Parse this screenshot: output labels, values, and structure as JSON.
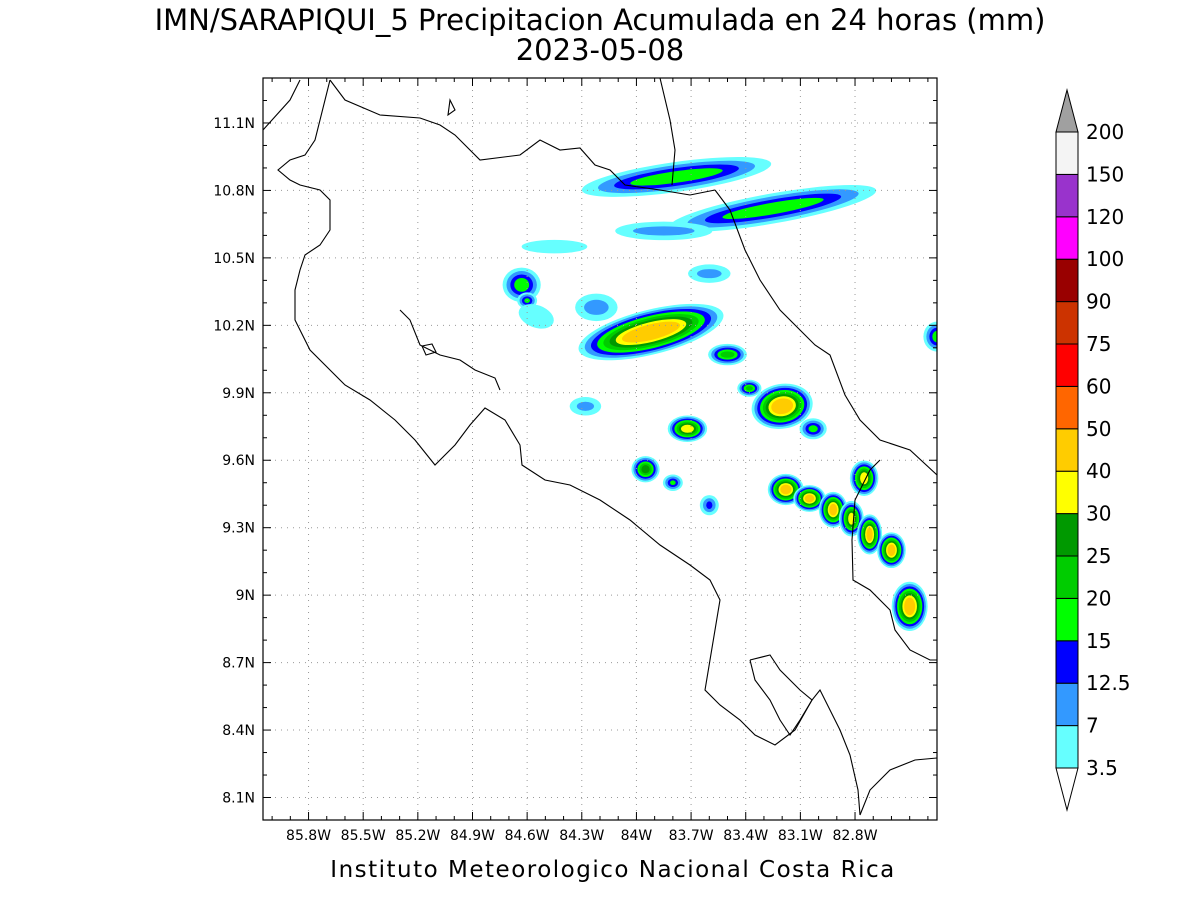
{
  "title": {
    "line1": "IMN/SARAPIQUI_5 Precipitacion Acumulada en 24 horas (mm)",
    "line2": "2023-05-08"
  },
  "footer": "Instituto Meteorologico Nacional Costa Rica",
  "axes": {
    "lon_range": [
      -86.05,
      -82.35
    ],
    "lat_range": [
      8.0,
      11.3
    ],
    "x_ticks": [
      {
        "value": -85.8,
        "label": "85.8W"
      },
      {
        "value": -85.5,
        "label": "85.5W"
      },
      {
        "value": -85.2,
        "label": "85.2W"
      },
      {
        "value": -84.9,
        "label": "84.9W"
      },
      {
        "value": -84.6,
        "label": "84.6W"
      },
      {
        "value": -84.3,
        "label": "84.3W"
      },
      {
        "value": -84.0,
        "label": "84W"
      },
      {
        "value": -83.7,
        "label": "83.7W"
      },
      {
        "value": -83.4,
        "label": "83.4W"
      },
      {
        "value": -83.1,
        "label": "83.1W"
      },
      {
        "value": -82.8,
        "label": "82.8W"
      }
    ],
    "y_ticks": [
      {
        "value": 8.1,
        "label": "8.1N"
      },
      {
        "value": 8.4,
        "label": "8.4N"
      },
      {
        "value": 8.7,
        "label": "8.7N"
      },
      {
        "value": 9.0,
        "label": "9N"
      },
      {
        "value": 9.3,
        "label": "9.3N"
      },
      {
        "value": 9.6,
        "label": "9.6N"
      },
      {
        "value": 9.9,
        "label": "9.9N"
      },
      {
        "value": 10.2,
        "label": "10.2N"
      },
      {
        "value": 10.5,
        "label": "10.5N"
      },
      {
        "value": 10.8,
        "label": "10.8N"
      },
      {
        "value": 11.1,
        "label": "11.1N"
      }
    ],
    "grid": "dotted"
  },
  "colorbar": {
    "levels": [
      "3.5",
      "7",
      "12.5",
      "15",
      "20",
      "25",
      "30",
      "40",
      "50",
      "60",
      "75",
      "90",
      "100",
      "120",
      "150",
      "200"
    ],
    "colors": [
      "#ffffff",
      "#66ffff",
      "#3399ff",
      "#0000ff",
      "#00ff00",
      "#00cc00",
      "#009900",
      "#ffff00",
      "#ffcc00",
      "#ff6600",
      "#ff0000",
      "#cc3300",
      "#990000",
      "#ff00ff",
      "#9933cc",
      "#f4f4f4",
      "#a0a0a0"
    ],
    "extend": "both"
  },
  "precip_cells": [
    {
      "lon": -83.78,
      "lat": 10.86,
      "rx": 0.5,
      "ry": 0.05,
      "rot": 8,
      "peak": 15
    },
    {
      "lon": -83.25,
      "lat": 10.72,
      "rx": 0.55,
      "ry": 0.05,
      "rot": 10,
      "peak": 15
    },
    {
      "lon": -83.85,
      "lat": 10.62,
      "rx": 0.25,
      "ry": 0.03,
      "rot": 0,
      "peak": 7
    },
    {
      "lon": -84.45,
      "lat": 10.55,
      "rx": 0.18,
      "ry": 0.03,
      "rot": 0,
      "peak": 3.5
    },
    {
      "lon": -84.63,
      "lat": 10.38,
      "rx": 0.08,
      "ry": 0.06,
      "rot": 0,
      "peak": 15
    },
    {
      "lon": -84.6,
      "lat": 10.31,
      "rx": 0.03,
      "ry": 0.02,
      "rot": 0,
      "peak": 15
    },
    {
      "lon": -84.55,
      "lat": 10.24,
      "rx": 0.1,
      "ry": 0.05,
      "rot": -20,
      "peak": 3.5
    },
    {
      "lon": -83.92,
      "lat": 10.17,
      "rx": 0.38,
      "ry": 0.08,
      "rot": 14,
      "peak": 40
    },
    {
      "lon": -84.22,
      "lat": 10.28,
      "rx": 0.1,
      "ry": 0.05,
      "rot": 0,
      "peak": 7
    },
    {
      "lon": -83.6,
      "lat": 10.43,
      "rx": 0.1,
      "ry": 0.03,
      "rot": 0,
      "peak": 7
    },
    {
      "lon": -83.5,
      "lat": 10.07,
      "rx": 0.08,
      "ry": 0.03,
      "rot": 0,
      "peak": 20
    },
    {
      "lon": -83.38,
      "lat": 9.92,
      "rx": 0.04,
      "ry": 0.02,
      "rot": 0,
      "peak": 20
    },
    {
      "lon": -83.2,
      "lat": 9.84,
      "rx": 0.14,
      "ry": 0.08,
      "rot": 10,
      "peak": 40
    },
    {
      "lon": -84.28,
      "lat": 9.84,
      "rx": 0.07,
      "ry": 0.03,
      "rot": 0,
      "peak": 7
    },
    {
      "lon": -83.72,
      "lat": 9.74,
      "rx": 0.08,
      "ry": 0.04,
      "rot": 0,
      "peak": 30
    },
    {
      "lon": -83.03,
      "lat": 9.74,
      "rx": 0.05,
      "ry": 0.03,
      "rot": 0,
      "peak": 15
    },
    {
      "lon": -83.95,
      "lat": 9.56,
      "rx": 0.05,
      "ry": 0.04,
      "rot": 0,
      "peak": 25
    },
    {
      "lon": -83.8,
      "lat": 9.5,
      "rx": 0.03,
      "ry": 0.02,
      "rot": 0,
      "peak": 15
    },
    {
      "lon": -83.6,
      "lat": 9.4,
      "rx": 0.03,
      "ry": 0.03,
      "rot": 0,
      "peak": 12.5
    },
    {
      "lon": -83.18,
      "lat": 9.47,
      "rx": 0.07,
      "ry": 0.05,
      "rot": 0,
      "peak": 40
    },
    {
      "lon": -83.05,
      "lat": 9.43,
      "rx": 0.06,
      "ry": 0.04,
      "rot": 0,
      "peak": 40
    },
    {
      "lon": -82.92,
      "lat": 9.38,
      "rx": 0.05,
      "ry": 0.06,
      "rot": 0,
      "peak": 40
    },
    {
      "lon": -82.75,
      "lat": 9.52,
      "rx": 0.05,
      "ry": 0.06,
      "rot": 0,
      "peak": 30
    },
    {
      "lon": -82.82,
      "lat": 9.34,
      "rx": 0.04,
      "ry": 0.06,
      "rot": 0,
      "peak": 30
    },
    {
      "lon": -82.72,
      "lat": 9.27,
      "rx": 0.04,
      "ry": 0.07,
      "rot": 0,
      "peak": 40
    },
    {
      "lon": -82.6,
      "lat": 9.2,
      "rx": 0.05,
      "ry": 0.06,
      "rot": 0,
      "peak": 40
    },
    {
      "lon": -82.5,
      "lat": 8.95,
      "rx": 0.07,
      "ry": 0.09,
      "rot": 0,
      "peak": 40
    },
    {
      "lon": -82.35,
      "lat": 10.15,
      "rx": 0.05,
      "ry": 0.05,
      "rot": 0,
      "peak": 15
    }
  ]
}
